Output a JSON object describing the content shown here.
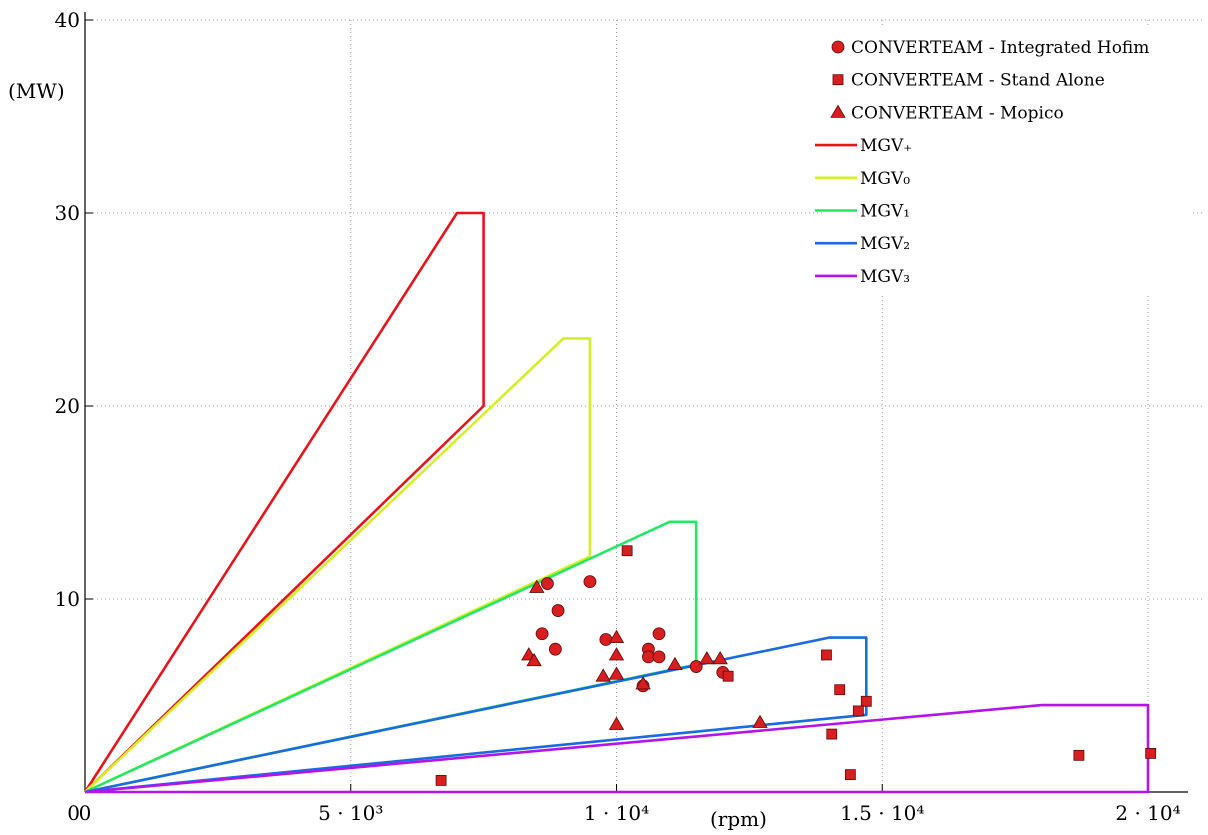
{
  "chart_data": {
    "type": "scatter",
    "xlabel": "(rpm)",
    "ylabel": "(MW)",
    "xlim": [
      0,
      20000
    ],
    "ylim": [
      0,
      40
    ],
    "grid": true,
    "legend_position": "top-right",
    "x_ticks": [
      {
        "value": 0,
        "label": "0"
      },
      {
        "value": 5000,
        "label": "5 · 10³"
      },
      {
        "value": 10000,
        "label": "1 · 10⁴"
      },
      {
        "value": 15000,
        "label": "1.5 · 10⁴"
      },
      {
        "value": 20000,
        "label": "2 · 10⁴"
      }
    ],
    "y_ticks": [
      {
        "value": 10,
        "label": "10"
      },
      {
        "value": 20,
        "label": "20"
      },
      {
        "value": 30,
        "label": "30"
      },
      {
        "value": 40,
        "label": "40"
      }
    ],
    "series": [
      {
        "name": "CONVERTEAM - Integrated Hofim",
        "kind": "points",
        "marker": "circle",
        "color": "#d81e1e",
        "points": [
          [
            8700,
            10.8
          ],
          [
            9500,
            10.9
          ],
          [
            8600,
            8.2
          ],
          [
            8900,
            9.4
          ],
          [
            8850,
            7.4
          ],
          [
            9800,
            7.9
          ],
          [
            10600,
            7.4
          ],
          [
            10600,
            7.0
          ],
          [
            10800,
            8.2
          ],
          [
            10800,
            7.0
          ],
          [
            10500,
            5.5
          ],
          [
            11500,
            6.5
          ],
          [
            12000,
            6.2
          ]
        ]
      },
      {
        "name": "CONVERTEAM - Stand Alone",
        "kind": "points",
        "marker": "square",
        "color": "#d81e1e",
        "points": [
          [
            10200,
            12.5
          ],
          [
            12100,
            6.0
          ],
          [
            13950,
            7.1
          ],
          [
            14200,
            5.3
          ],
          [
            14700,
            4.7
          ],
          [
            14550,
            4.2
          ],
          [
            14050,
            3.0
          ],
          [
            14400,
            0.9
          ],
          [
            6700,
            0.6
          ],
          [
            18700,
            1.9
          ],
          [
            20050,
            2.0
          ]
        ]
      },
      {
        "name": "CONVERTEAM - Mopico",
        "kind": "points",
        "marker": "triangle",
        "color": "#d81e1e",
        "points": [
          [
            8500,
            10.6
          ],
          [
            8350,
            7.1
          ],
          [
            8450,
            6.8
          ],
          [
            9750,
            6.0
          ],
          [
            10000,
            6.1
          ],
          [
            10000,
            8.0
          ],
          [
            10000,
            7.1
          ],
          [
            10500,
            5.6
          ],
          [
            11100,
            6.6
          ],
          [
            11700,
            6.9
          ],
          [
            11950,
            6.9
          ],
          [
            10000,
            3.5
          ],
          [
            12700,
            3.6
          ]
        ]
      },
      {
        "name": "MGV₊",
        "kind": "line",
        "color": "#e8141c",
        "points": [
          [
            0,
            0
          ],
          [
            7000,
            30
          ],
          [
            7500,
            30
          ],
          [
            7500,
            20
          ],
          [
            0,
            0
          ]
        ]
      },
      {
        "name": "MGV₀",
        "kind": "line",
        "color": "#d4f024",
        "points": [
          [
            0,
            0
          ],
          [
            9000,
            23.5
          ],
          [
            9500,
            23.5
          ],
          [
            9500,
            12.2
          ],
          [
            0,
            0
          ]
        ]
      },
      {
        "name": "MGV₁",
        "kind": "line",
        "color": "#22e866",
        "points": [
          [
            0,
            0
          ],
          [
            11000,
            14
          ],
          [
            11500,
            14
          ],
          [
            11500,
            6.6
          ],
          [
            0,
            0
          ]
        ]
      },
      {
        "name": "MGV₂",
        "kind": "line",
        "color": "#1a6be0",
        "points": [
          [
            0,
            0
          ],
          [
            14000,
            8
          ],
          [
            14700,
            8
          ],
          [
            14700,
            4.0
          ],
          [
            0,
            0
          ]
        ]
      },
      {
        "name": "MGV₃",
        "kind": "line",
        "color": "#b414e8",
        "points": [
          [
            0,
            0
          ],
          [
            18000,
            4.5
          ],
          [
            20000,
            4.5
          ],
          [
            20000,
            0
          ],
          [
            0,
            0
          ]
        ]
      }
    ]
  }
}
